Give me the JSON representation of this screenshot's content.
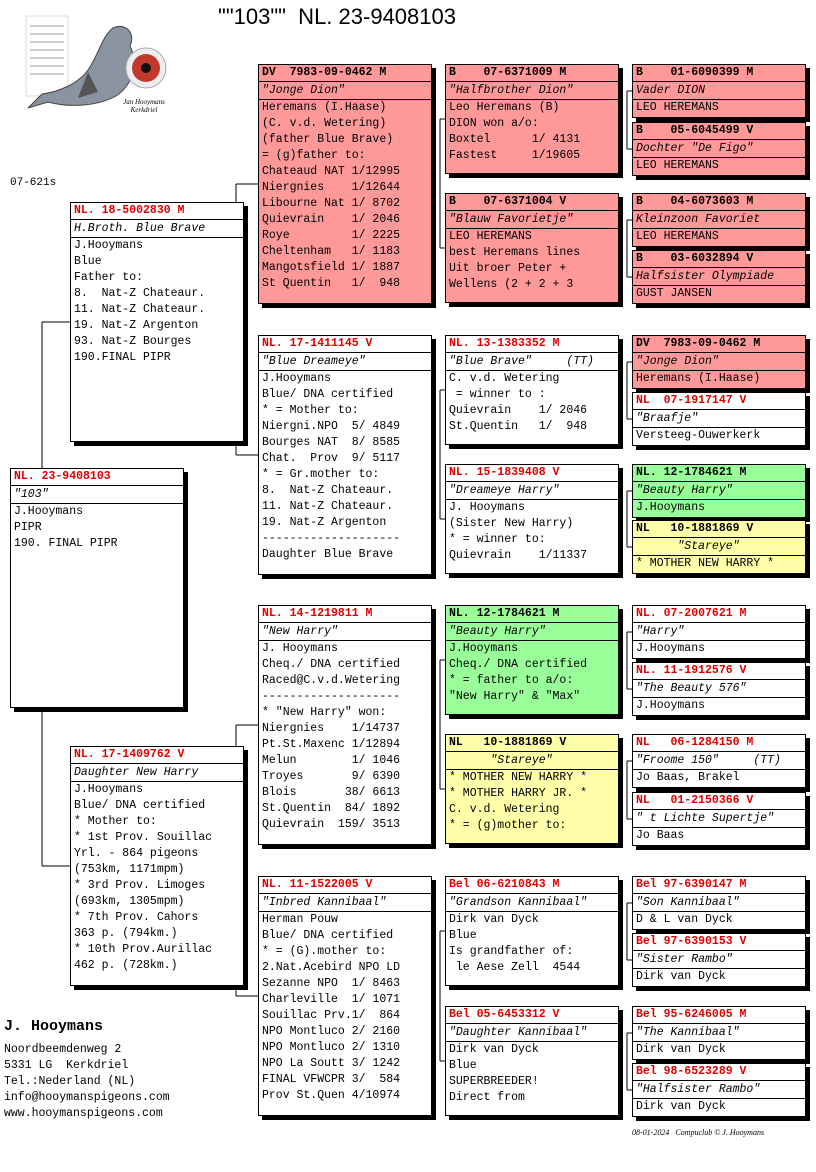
{
  "header": {
    "title": "\"\"103\"\"  NL. 23-9408103",
    "code": "07-621s",
    "logo_name": "Jan Hooymans",
    "logo_place": "Kerkdriel"
  },
  "boxes": [
    {
      "ring": "NL. 23-9408103",
      "name": "\"103\"",
      "lines": [
        "J.Hooymans",
        "PIPR",
        "190. FINAL PIPR"
      ]
    },
    {
      "ring": "NL. 18-5002830 M",
      "name": "H.Broth. Blue Brave",
      "lines": [
        "J.Hooymans",
        "Blue",
        "Father to:",
        "8.  Nat-Z Chateaur.",
        "11. Nat-Z Chateaur.",
        "19. Nat-Z Argenton",
        "93. Nat-Z Bourges",
        "190.FINAL PIPR"
      ]
    },
    {
      "ring": "NL. 17-1409762 V",
      "name": "Daughter New Harry",
      "lines": [
        "J.Hooymans",
        "Blue/ DNA certified",
        "* Mother to:",
        "* 1st Prov. Souillac",
        "Yrl. - 864 pigeons",
        "(753km, 1171mpm)",
        "* 3rd Prov. Limoges",
        "(693km, 1305mpm)",
        "* 7th Prov. Cahors",
        "363 p. (794km.)",
        "* 10th Prov.Aurillac",
        "462 p. (728km.)"
      ]
    },
    {
      "ring": "DV  7983-09-0462 M",
      "name": "\"Jonge Dion\"",
      "lines": [
        "Heremans (I.Haase)",
        "(C. v.d. Wetering)",
        "(father Blue Brave)",
        "= (g)father to:",
        "Chateaud NAT 1/12995",
        "Niergnies    1/12644",
        "Libourne Nat 1/ 8702",
        "Quievrain    1/ 2046",
        "Roye         1/ 2225",
        "Cheltenham   1/ 1183",
        "Mangotsfield 1/ 1887",
        "St Quentin   1/  948"
      ]
    },
    {
      "ring": "NL. 17-1411145 V",
      "name": "\"Blue Dreameye\"",
      "lines": [
        "J.Hooymans",
        "Blue/ DNA certified",
        "* = Mother to:",
        "Niergni.NPO  5/ 4849",
        "Bourges NAT  8/ 8585",
        "Chat.  Prov  9/ 5117",
        "* = Gr.mother to:",
        "8.  Nat-Z Chateaur.",
        "11. Nat-Z Chateaur.",
        "19. Nat-Z Argenton",
        "--------------------",
        "Daughter Blue Brave"
      ]
    },
    {
      "ring": "NL. 14-1219811 M",
      "name": "\"New Harry\"",
      "lines": [
        "J. Hooymans",
        "Cheq./ DNA certified",
        "Raced@C.v.d.Wetering",
        "--------------------",
        "* \"New Harry\" won:",
        "Niergnies    1/14737",
        "Pt.St.Maxenc 1/12894",
        "Melun        1/ 1046",
        "Troyes       9/ 6390",
        "Blois       38/ 6613",
        "St.Quentin  84/ 1892",
        "Quievrain  159/ 3513"
      ]
    },
    {
      "ring": "NL. 11-1522005 V",
      "name": "\"Inbred Kannibaal\"",
      "lines": [
        "Herman Pouw",
        "Blue/ DNA certified",
        "* = (G).mother to:",
        "2.Nat.Acebird NPO LD",
        "Sezanne NPO  1/ 8463",
        "Charleville  1/ 1071",
        "Souillac Prv.1/  864",
        "NPO Montluco 2/ 2160",
        "NPO Montluco 2/ 1310",
        "NPO La Soutt 3/ 1242",
        "FINAL VFWCPR 3/  584",
        "Prov St.Quen 4/10974"
      ]
    },
    {
      "ring": "B    07-6371009 M",
      "name": "\"Halfbrother Dion\"",
      "lines": [
        "Leo Heremans (B)",
        "DION won a/o:",
        "Boxtel      1/ 4131",
        "Fastest     1/19605"
      ]
    },
    {
      "ring": "B    07-6371004 V",
      "name": "\"Blauw Favorietje\"",
      "lines": [
        "LEO HEREMANS",
        "best Heremans lines",
        "Uit broer Peter +",
        "Wellens (2 + 2 + 3"
      ]
    },
    {
      "ring": "NL. 13-1383352 M",
      "name": "\"Blue Brave\"     (TT)",
      "lines": [
        "C. v.d. Wetering",
        " = winner to :",
        "Quievrain    1/ 2046",
        "St.Quentin   1/  948"
      ]
    },
    {
      "ring": "NL. 15-1839408 V",
      "name": "\"Dreameye Harry\"",
      "lines": [
        "J. Hooymans",
        "(Sister New Harry)",
        "* = winner to:",
        "Quievrain    1/11337"
      ]
    },
    {
      "ring": "NL. 12-1784621 M",
      "name": "\"Beauty Harry\"",
      "lines": [
        "J.Hooymans",
        "Cheq./ DNA certified",
        "* = father to a/o:",
        "\"New Harry\" & \"Max\""
      ]
    },
    {
      "ring": "NL   10-1881869 V",
      "name": "      \"Stareye\"",
      "lines": [
        "* MOTHER NEW HARRY *",
        "* MOTHER HARRY JR. *",
        "C. v.d. Wetering",
        "* = (g)mother to:"
      ]
    },
    {
      "ring": "Bel 06-6210843 M",
      "name": "\"Grandson Kannibaal\"",
      "lines": [
        "Dirk van Dyck",
        "Blue",
        "Is grandfather of:",
        " le Aese Zell  4544"
      ]
    },
    {
      "ring": "Bel 05-6453312 V",
      "name": "\"Daughter Kannibaal\"",
      "lines": [
        "Dirk van Dyck",
        "Blue",
        "SUPERBREEDER!",
        "Direct from"
      ]
    },
    {
      "ring": "B    01-6090399 M",
      "name": "Vader DION",
      "lines": [
        "LEO HEREMANS"
      ]
    },
    {
      "ring": "B    05-6045499 V",
      "name": "Dochter \"De Figo\"",
      "lines": [
        "LEO HEREMANS"
      ]
    },
    {
      "ring": "B    04-6073603 M",
      "name": "Kleinzoon Favoriet",
      "lines": [
        "LEO HEREMANS"
      ]
    },
    {
      "ring": "B    03-6032894 V",
      "name": "Halfsister Olympiade",
      "lines": [
        "GUST JANSEN"
      ]
    },
    {
      "ring": "DV  7983-09-0462 M",
      "name": "\"Jonge Dion\"",
      "lines": [
        "Heremans (I.Haase)"
      ]
    },
    {
      "ring": "NL  07-1917147 V",
      "name": "\"Braafje\"",
      "lines": [
        "Versteeg-Ouwerkerk"
      ]
    },
    {
      "ring": "NL. 12-1784621 M",
      "name": "\"Beauty Harry\"",
      "lines": [
        "J.Hooymans"
      ]
    },
    {
      "ring": "NL   10-1881869 V",
      "name": "      \"Stareye\"",
      "lines": [
        "* MOTHER NEW HARRY *"
      ]
    },
    {
      "ring": "NL. 07-2007621 M",
      "name": "\"Harry\"",
      "lines": [
        "J.Hooymans"
      ]
    },
    {
      "ring": "NL. 11-1912576 V",
      "name": "\"The Beauty 576\"",
      "lines": [
        "J.Hooymans"
      ]
    },
    {
      "ring": "NL   06-1284150 M",
      "name": "\"Froome 150\"     (TT)",
      "lines": [
        "Jo Baas, Brakel"
      ]
    },
    {
      "ring": "NL   01-2150366 V",
      "name": "\" t Lichte Supertje\"",
      "lines": [
        "Jo Baas"
      ]
    },
    {
      "ring": "Bel 97-6390147 M",
      "name": "\"Son Kannibaal\"",
      "lines": [
        "D & L van Dyck"
      ]
    },
    {
      "ring": "Bel 97-6390153 V",
      "name": "\"Sister Rambo\"",
      "lines": [
        "Dirk van Dyck"
      ]
    },
    {
      "ring": "Bel 95-6246005 M",
      "name": "\"The Kannibaal\"",
      "lines": [
        "Dirk van Dyck"
      ]
    },
    {
      "ring": "Bel 98-6523289 V",
      "name": "\"Halfsister Rambo\"",
      "lines": [
        "Dirk van Dyck"
      ]
    }
  ],
  "footer": {
    "name": "J. Hooymans",
    "lines": [
      "Noordbeemdenweg 2",
      "5331 LG  Kerkdriel",
      "Tel.:Nederland (NL)",
      "info@hooymanspigeons.com",
      "www.hooymanspigeons.com"
    ],
    "stamp": "08-01-2024   Compuclub © J. Hooymans"
  }
}
